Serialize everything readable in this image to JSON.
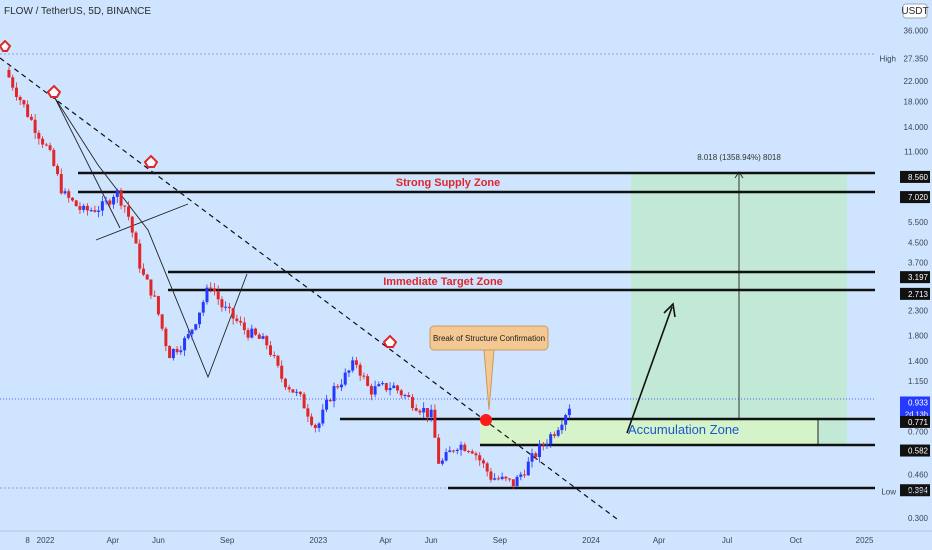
{
  "header": {
    "title": "FLOW / TetherUS, 5D, BINANCE",
    "currency": "USDT"
  },
  "colors": {
    "background": "#cfe5ff",
    "up": "#2639ff",
    "down": "#e0262b",
    "zone_fill": "#bfe9d1",
    "accum_fill": "#d6f3c7",
    "text_dark": "#1f1f1f",
    "target_label": "#e0262b",
    "accum_text": "#1a57d0",
    "tag_bg": "#f3c892",
    "dot": "#ff1a1a"
  },
  "price_axis": {
    "ticks": [
      "36.000",
      "27.350",
      "22.000",
      "18.000",
      "14.000",
      "11.000",
      "8.560",
      "7.020",
      "5.500",
      "4.500",
      "3.700",
      "3.197",
      "2.713",
      "2.300",
      "1.800",
      "1.400",
      "1.150",
      "0.933",
      "0.771",
      "0.700",
      "0.582",
      "0.460",
      "0.394",
      "0.390",
      "0.300"
    ],
    "high_label": "High",
    "high_value": "27.350",
    "low_label": "Low",
    "low_value": "0.390",
    "current_price": "0.933",
    "current_sub": "2d 13h",
    "levels": [
      "8.560",
      "7.020",
      "3.197",
      "2.713",
      "0.771",
      "0.582",
      "0.394"
    ]
  },
  "time_axis": {
    "labels": [
      "8",
      "2022",
      "Apr",
      "Jun",
      "Sep",
      "2023",
      "Apr",
      "Jun",
      "Sep",
      "2024",
      "Apr",
      "Jul",
      "Oct",
      "2025"
    ]
  },
  "annotations": {
    "strong_supply": "Strong Supply Zone",
    "immediate_target": "Immediate Target Zone",
    "accumulation": "Accumulation Zone",
    "break_label": "Break of Structure Confirmation",
    "measure_text": "8.018 (1358.94%) 8018"
  },
  "chart_data": {
    "type": "candlestick",
    "title": "FLOW / TetherUS, 5D, BINANCE",
    "yscale": "log",
    "ylim": [
      0.28,
      40
    ],
    "xlim": [
      "2021-11-01",
      "2025-01-15"
    ],
    "horizontal_levels": [
      8.56,
      7.02,
      3.197,
      2.713,
      0.771,
      0.582,
      0.394
    ],
    "high": 27.35,
    "low": 0.39,
    "last_price": 0.933,
    "path_points": [
      {
        "date": "2021-11-08",
        "price": 24.5
      },
      {
        "date": "2021-12-10",
        "price": 15.5
      },
      {
        "date": "2022-01-05",
        "price": 11.0
      },
      {
        "date": "2022-01-25",
        "price": 7.2
      },
      {
        "date": "2022-02-20",
        "price": 6.1
      },
      {
        "date": "2022-03-20",
        "price": 6.4
      },
      {
        "date": "2022-04-05",
        "price": 7.5
      },
      {
        "date": "2022-04-20",
        "price": 6.2
      },
      {
        "date": "2022-05-10",
        "price": 3.3
      },
      {
        "date": "2022-05-25",
        "price": 2.7
      },
      {
        "date": "2022-06-15",
        "price": 1.5
      },
      {
        "date": "2022-07-10",
        "price": 1.75
      },
      {
        "date": "2022-08-10",
        "price": 3.0
      },
      {
        "date": "2022-08-25",
        "price": 2.4
      },
      {
        "date": "2022-09-25",
        "price": 1.9
      },
      {
        "date": "2022-10-25",
        "price": 1.65
      },
      {
        "date": "2022-11-12",
        "price": 1.2
      },
      {
        "date": "2022-12-10",
        "price": 0.95
      },
      {
        "date": "2022-12-30",
        "price": 0.72
      },
      {
        "date": "2023-01-20",
        "price": 1.05
      },
      {
        "date": "2023-02-10",
        "price": 1.25
      },
      {
        "date": "2023-02-20",
        "price": 1.4
      },
      {
        "date": "2023-03-10",
        "price": 1.05
      },
      {
        "date": "2023-04-10",
        "price": 1.1
      },
      {
        "date": "2023-05-05",
        "price": 0.95
      },
      {
        "date": "2023-06-01",
        "price": 0.82
      },
      {
        "date": "2023-06-12",
        "price": 0.5
      },
      {
        "date": "2023-07-05",
        "price": 0.62
      },
      {
        "date": "2023-07-25",
        "price": 0.6
      },
      {
        "date": "2023-08-20",
        "price": 0.45
      },
      {
        "date": "2023-09-20",
        "price": 0.42
      },
      {
        "date": "2023-10-20",
        "price": 0.57
      },
      {
        "date": "2023-11-15",
        "price": 0.72
      },
      {
        "date": "2023-12-05",
        "price": 0.93
      }
    ]
  }
}
